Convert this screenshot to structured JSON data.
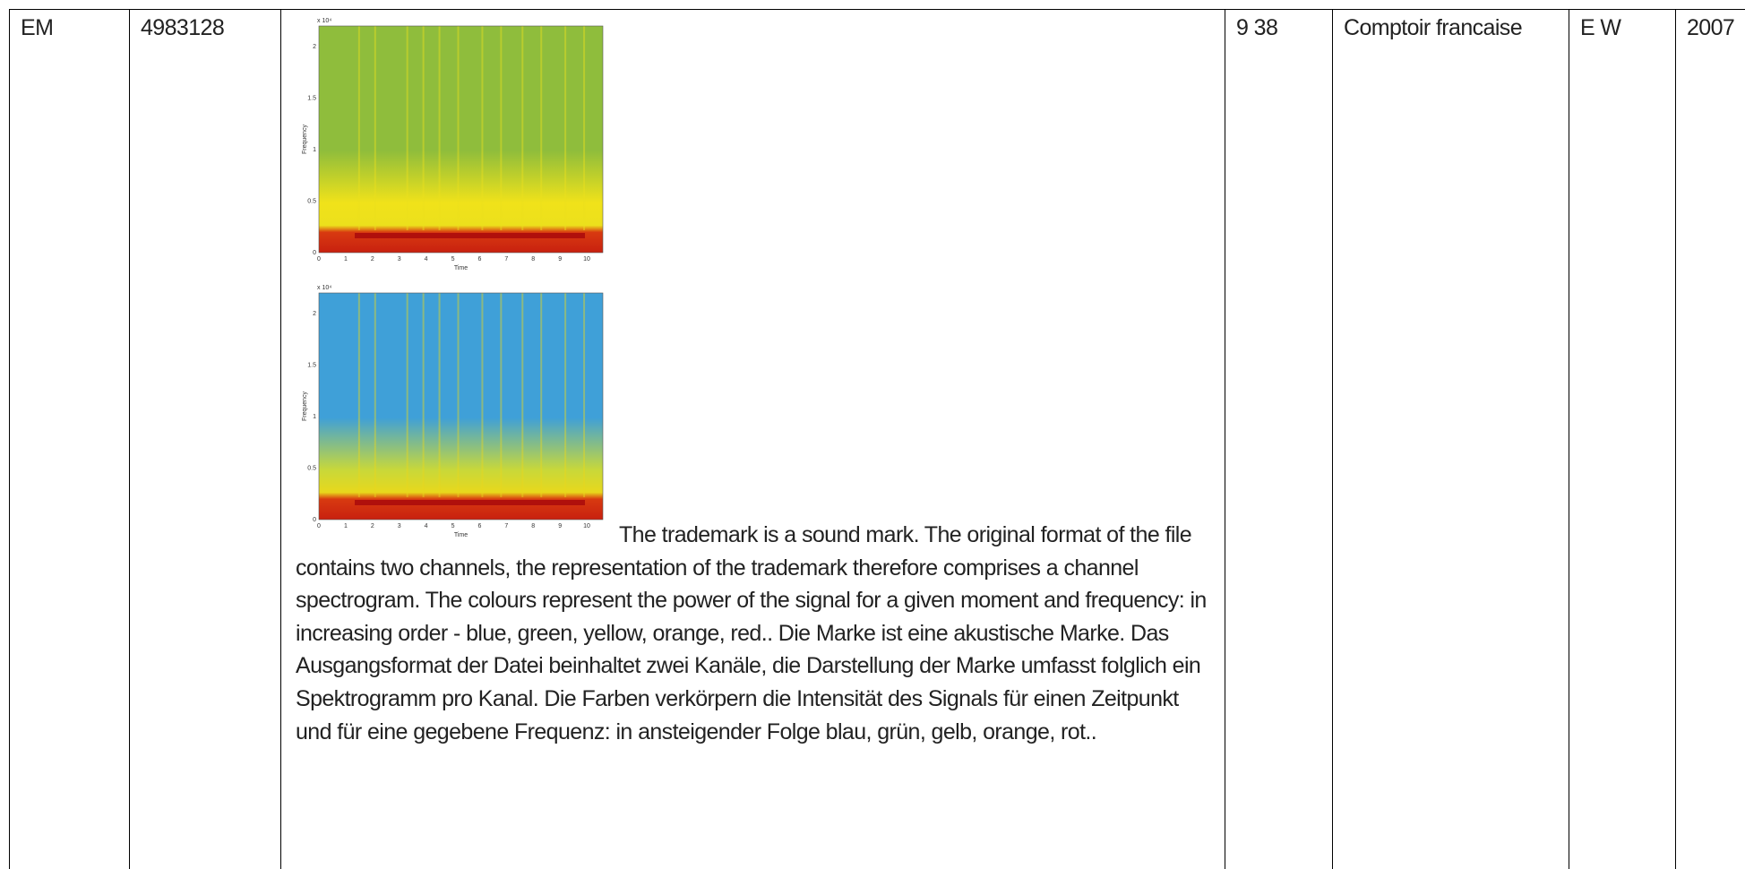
{
  "row": {
    "kind": "EM",
    "number": "4983128",
    "description": "The trademark is a sound mark. The original format of the file contains two channels, the representation of the trademark therefore comprises a channel spectrogram. The colours represent the power of the signal for a given moment and frequency: in increasing order - blue, green, yellow, orange, red.. Die Marke ist eine akustische Marke. Das Ausgangsformat der Datei beinhaltet zwei Kanäle, die Darstellung der Marke umfasst folglich ein Spektrogramm pro Kanal. Die Farben verkörpern die Intensität des Signals für einen Zeitpunkt und für eine gegebene Frequenz: in ansteigender Folge blau, grün, gelb, orange, rot..",
    "classes": "9 38",
    "owner": "Comptoir francaise",
    "languages": "E W",
    "year": "2007"
  },
  "spectrogram": {
    "exponent": "x 10⁴",
    "ylabel": "Frequency",
    "xlabel": "Time",
    "yticks": [
      "0",
      "0.5",
      "1",
      "1.5",
      "2"
    ],
    "xticks": [
      "0",
      "1",
      "2",
      "3",
      "4",
      "5",
      "6",
      "7",
      "8",
      "9",
      "10"
    ]
  }
}
